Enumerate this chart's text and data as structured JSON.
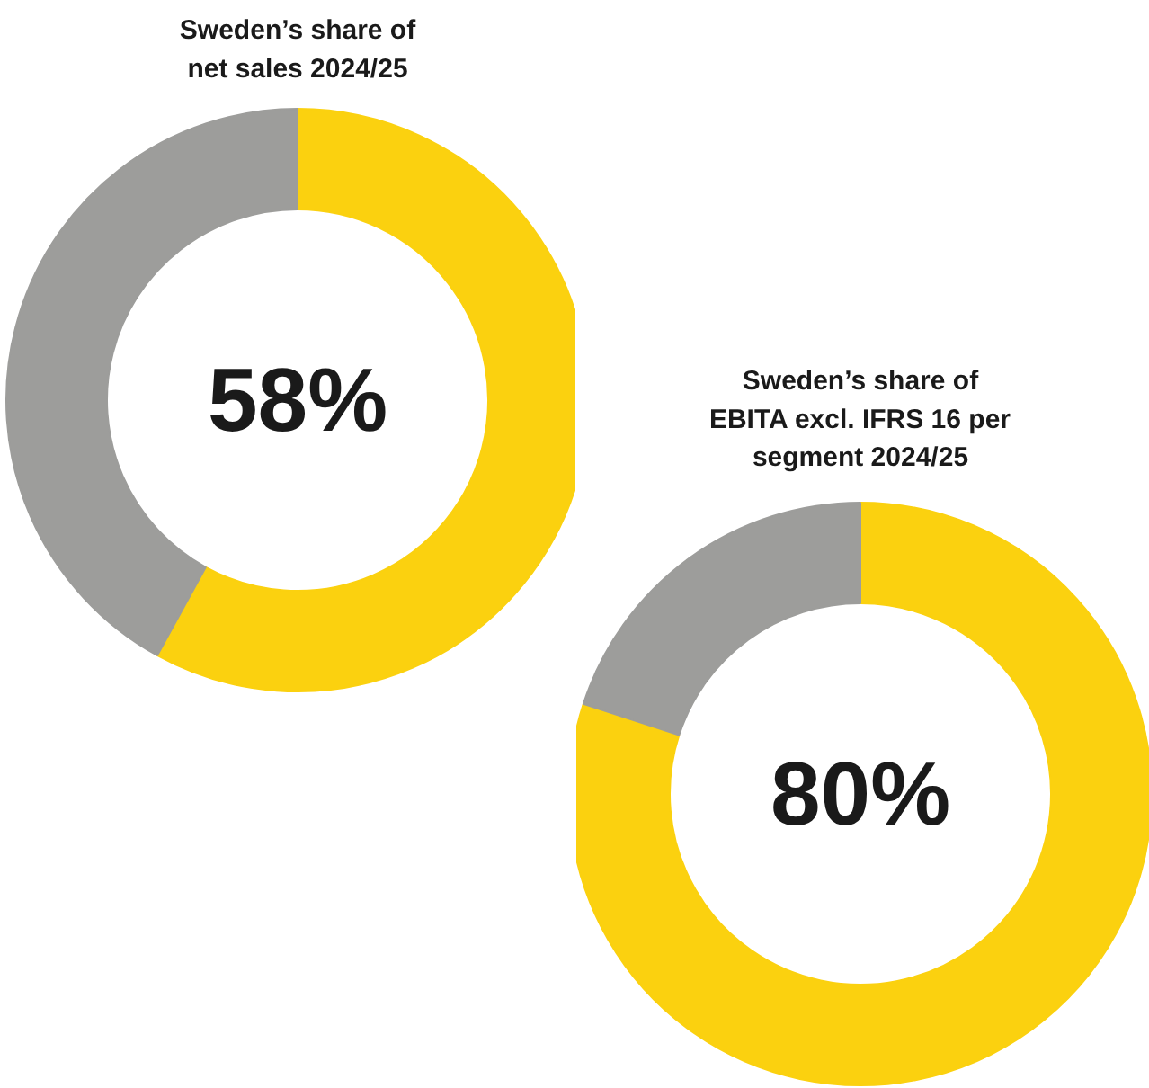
{
  "chart_data": [
    {
      "type": "donut",
      "title": "Sweden’s share of\nnet sales 2024/25",
      "categories": [
        null,
        null
      ],
      "values": [
        58,
        42
      ],
      "colors": [
        "#fbd10f",
        "#9d9d9b"
      ],
      "annotations": [
        "58%"
      ]
    },
    {
      "type": "donut",
      "title": "Sweden’s share of\nEBITA excl. IFRS 16 per\nsegment 2024/25",
      "categories": [
        null,
        null
      ],
      "values": [
        80,
        20
      ],
      "colors": [
        "#fbd10f",
        "#9d9d9b"
      ],
      "annotations": [
        "80%"
      ]
    }
  ]
}
